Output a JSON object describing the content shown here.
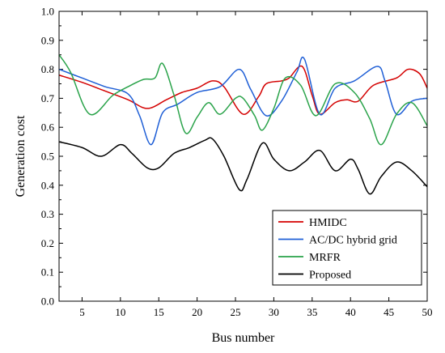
{
  "chart_data": {
    "type": "line",
    "xlabel": "Bus number",
    "ylabel": "Generation cost",
    "xlim": [
      2,
      50
    ],
    "ylim": [
      0.0,
      1.0
    ],
    "xticks": [
      5,
      10,
      15,
      20,
      25,
      30,
      35,
      40,
      45,
      50
    ],
    "yticks": [
      0.0,
      0.1,
      0.2,
      0.3,
      0.4,
      0.5,
      0.6,
      0.7,
      0.8,
      0.9,
      1.0
    ],
    "ytick_labels": [
      "0.0",
      "0.1",
      "0.2",
      "0.3",
      "0.4",
      "0.5",
      "0.6",
      "0.7",
      "0.8",
      "0.9",
      "1.0"
    ],
    "grid": false,
    "legend_position": "bottom-right",
    "series": [
      {
        "name": "HMIDC",
        "color": "#d40000",
        "x": [
          2,
          5,
          8,
          11,
          13.5,
          16,
          18,
          20,
          22,
          23.5,
          26,
          28,
          29,
          31,
          32,
          33.7,
          35,
          36,
          38,
          39.5,
          41,
          43,
          46,
          47.5,
          49,
          50
        ],
        "y": [
          0.78,
          0.755,
          0.725,
          0.695,
          0.665,
          0.695,
          0.72,
          0.735,
          0.76,
          0.74,
          0.645,
          0.705,
          0.75,
          0.76,
          0.77,
          0.81,
          0.71,
          0.645,
          0.685,
          0.695,
          0.69,
          0.745,
          0.77,
          0.8,
          0.785,
          0.735
        ]
      },
      {
        "name": "AC/DC hybrid grid",
        "color": "#1f5fd6",
        "x": [
          2,
          5,
          8,
          11,
          12.5,
          14,
          15.5,
          17.5,
          20,
          23,
          25.5,
          27,
          29,
          31,
          33,
          34,
          36,
          38,
          40.5,
          43.5,
          44.5,
          46,
          48,
          50
        ],
        "y": [
          0.8,
          0.77,
          0.74,
          0.715,
          0.64,
          0.54,
          0.65,
          0.68,
          0.72,
          0.74,
          0.8,
          0.73,
          0.64,
          0.69,
          0.79,
          0.835,
          0.645,
          0.735,
          0.76,
          0.81,
          0.76,
          0.645,
          0.69,
          0.7
        ]
      },
      {
        "name": "MRFR",
        "color": "#2aa34a",
        "x": [
          2,
          3.5,
          6,
          9,
          11,
          13,
          14.5,
          15.5,
          17,
          18.5,
          20,
          21.5,
          23,
          25,
          26,
          27.5,
          28.5,
          30,
          31.5,
          33.5,
          35.5,
          38,
          40.5,
          42.5,
          44,
          46,
          48,
          50
        ],
        "y": [
          0.85,
          0.79,
          0.645,
          0.71,
          0.74,
          0.765,
          0.77,
          0.82,
          0.71,
          0.58,
          0.635,
          0.685,
          0.645,
          0.7,
          0.7,
          0.64,
          0.59,
          0.665,
          0.77,
          0.745,
          0.64,
          0.75,
          0.72,
          0.63,
          0.54,
          0.645,
          0.685,
          0.605
        ]
      },
      {
        "name": "Proposed",
        "color": "#000000",
        "x": [
          2,
          5,
          7.5,
          10,
          11.5,
          13.5,
          15,
          17,
          19,
          21,
          22,
          23.5,
          25.5,
          26.5,
          28.5,
          30,
          32,
          34,
          36,
          38,
          40,
          41,
          42.5,
          44,
          46,
          48,
          50
        ],
        "y": [
          0.55,
          0.53,
          0.5,
          0.54,
          0.51,
          0.46,
          0.46,
          0.51,
          0.53,
          0.555,
          0.56,
          0.5,
          0.385,
          0.42,
          0.545,
          0.49,
          0.45,
          0.48,
          0.52,
          0.45,
          0.49,
          0.455,
          0.37,
          0.43,
          0.48,
          0.45,
          0.395
        ]
      }
    ]
  }
}
